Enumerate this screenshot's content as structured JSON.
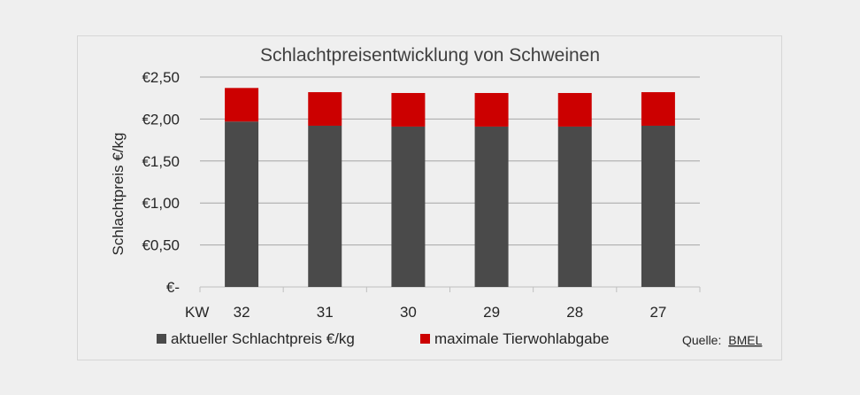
{
  "chart_data": {
    "type": "bar",
    "stacked": true,
    "title": "Schlachtpreisentwicklung von Schweinen",
    "ylabel": "Schlachtpreis €/kg",
    "xlabel": "KW",
    "categories": [
      "32",
      "31",
      "30",
      "29",
      "28",
      "27"
    ],
    "ylim": [
      0,
      2.5
    ],
    "yticks": [
      0,
      0.5,
      1.0,
      1.5,
      2.0,
      2.5
    ],
    "ytick_labels": [
      "€-",
      "€0,50",
      "€1,00",
      "€1,50",
      "€2,00",
      "€2,50"
    ],
    "grid": true,
    "legend_position": "bottom",
    "series": [
      {
        "name": "aktueller Schlachtpreis €/kg",
        "color": "#4a4a4a",
        "values": [
          1.97,
          1.92,
          1.91,
          1.91,
          1.91,
          1.92
        ]
      },
      {
        "name": "maximale Tierwohlabgabe",
        "color": "#cc0000",
        "values": [
          0.4,
          0.4,
          0.4,
          0.4,
          0.4,
          0.4
        ]
      }
    ],
    "source_label": "Quelle:",
    "source_link": "BMEL"
  }
}
